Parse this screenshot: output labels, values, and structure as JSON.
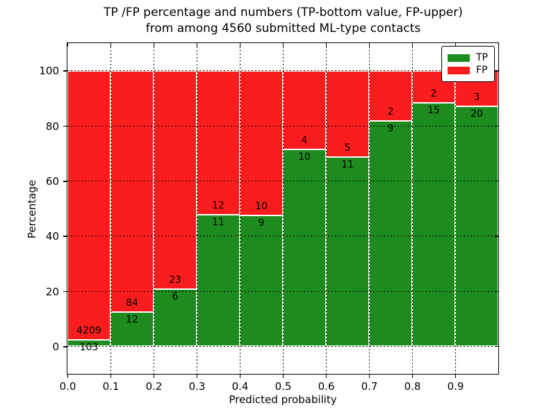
{
  "title": {
    "line1": "TP /FP percentage and numbers (TP-bottom value, FP-upper)",
    "line2": "from among 4560 submitted ML-type contacts"
  },
  "chart_data": {
    "type": "bar",
    "stacked": true,
    "normalized": "each bin scaled to 100%",
    "title": "TP /FP percentage and numbers (TP-bottom value, FP-upper) from among 4560 submitted ML-type contacts",
    "xlabel": "Predicted probability",
    "ylabel": "Percentage",
    "total_submitted": 4560,
    "bin_edges": [
      0.0,
      0.1,
      0.2,
      0.3,
      0.4,
      0.5,
      0.6,
      0.7,
      0.8,
      0.9,
      1.0
    ],
    "series": [
      {
        "name": "TP",
        "color": "#1e8b1e",
        "counts": [
          103,
          12,
          6,
          11,
          9,
          10,
          11,
          9,
          15,
          20
        ]
      },
      {
        "name": "FP",
        "color": "#fb1d1d",
        "counts": [
          4209,
          84,
          23,
          12,
          10,
          4,
          5,
          2,
          2,
          3
        ]
      }
    ],
    "tp_percent_per_bin": [
      2.4,
      12.5,
      20.7,
      47.8,
      47.4,
      71.4,
      68.8,
      81.8,
      88.2,
      87.0
    ],
    "xticks": [
      "0.0",
      "0.1",
      "0.2",
      "0.3",
      "0.4",
      "0.5",
      "0.6",
      "0.7",
      "0.8",
      "0.9"
    ],
    "yticks": [
      "0",
      "20",
      "40",
      "60",
      "80",
      "100"
    ],
    "xlim": [
      0.0,
      1.0
    ],
    "ylim": [
      -10,
      110
    ],
    "grid": true,
    "grid_style": "dotted",
    "bar_edge_color": "#ffffff",
    "legend_position": "upper right"
  }
}
